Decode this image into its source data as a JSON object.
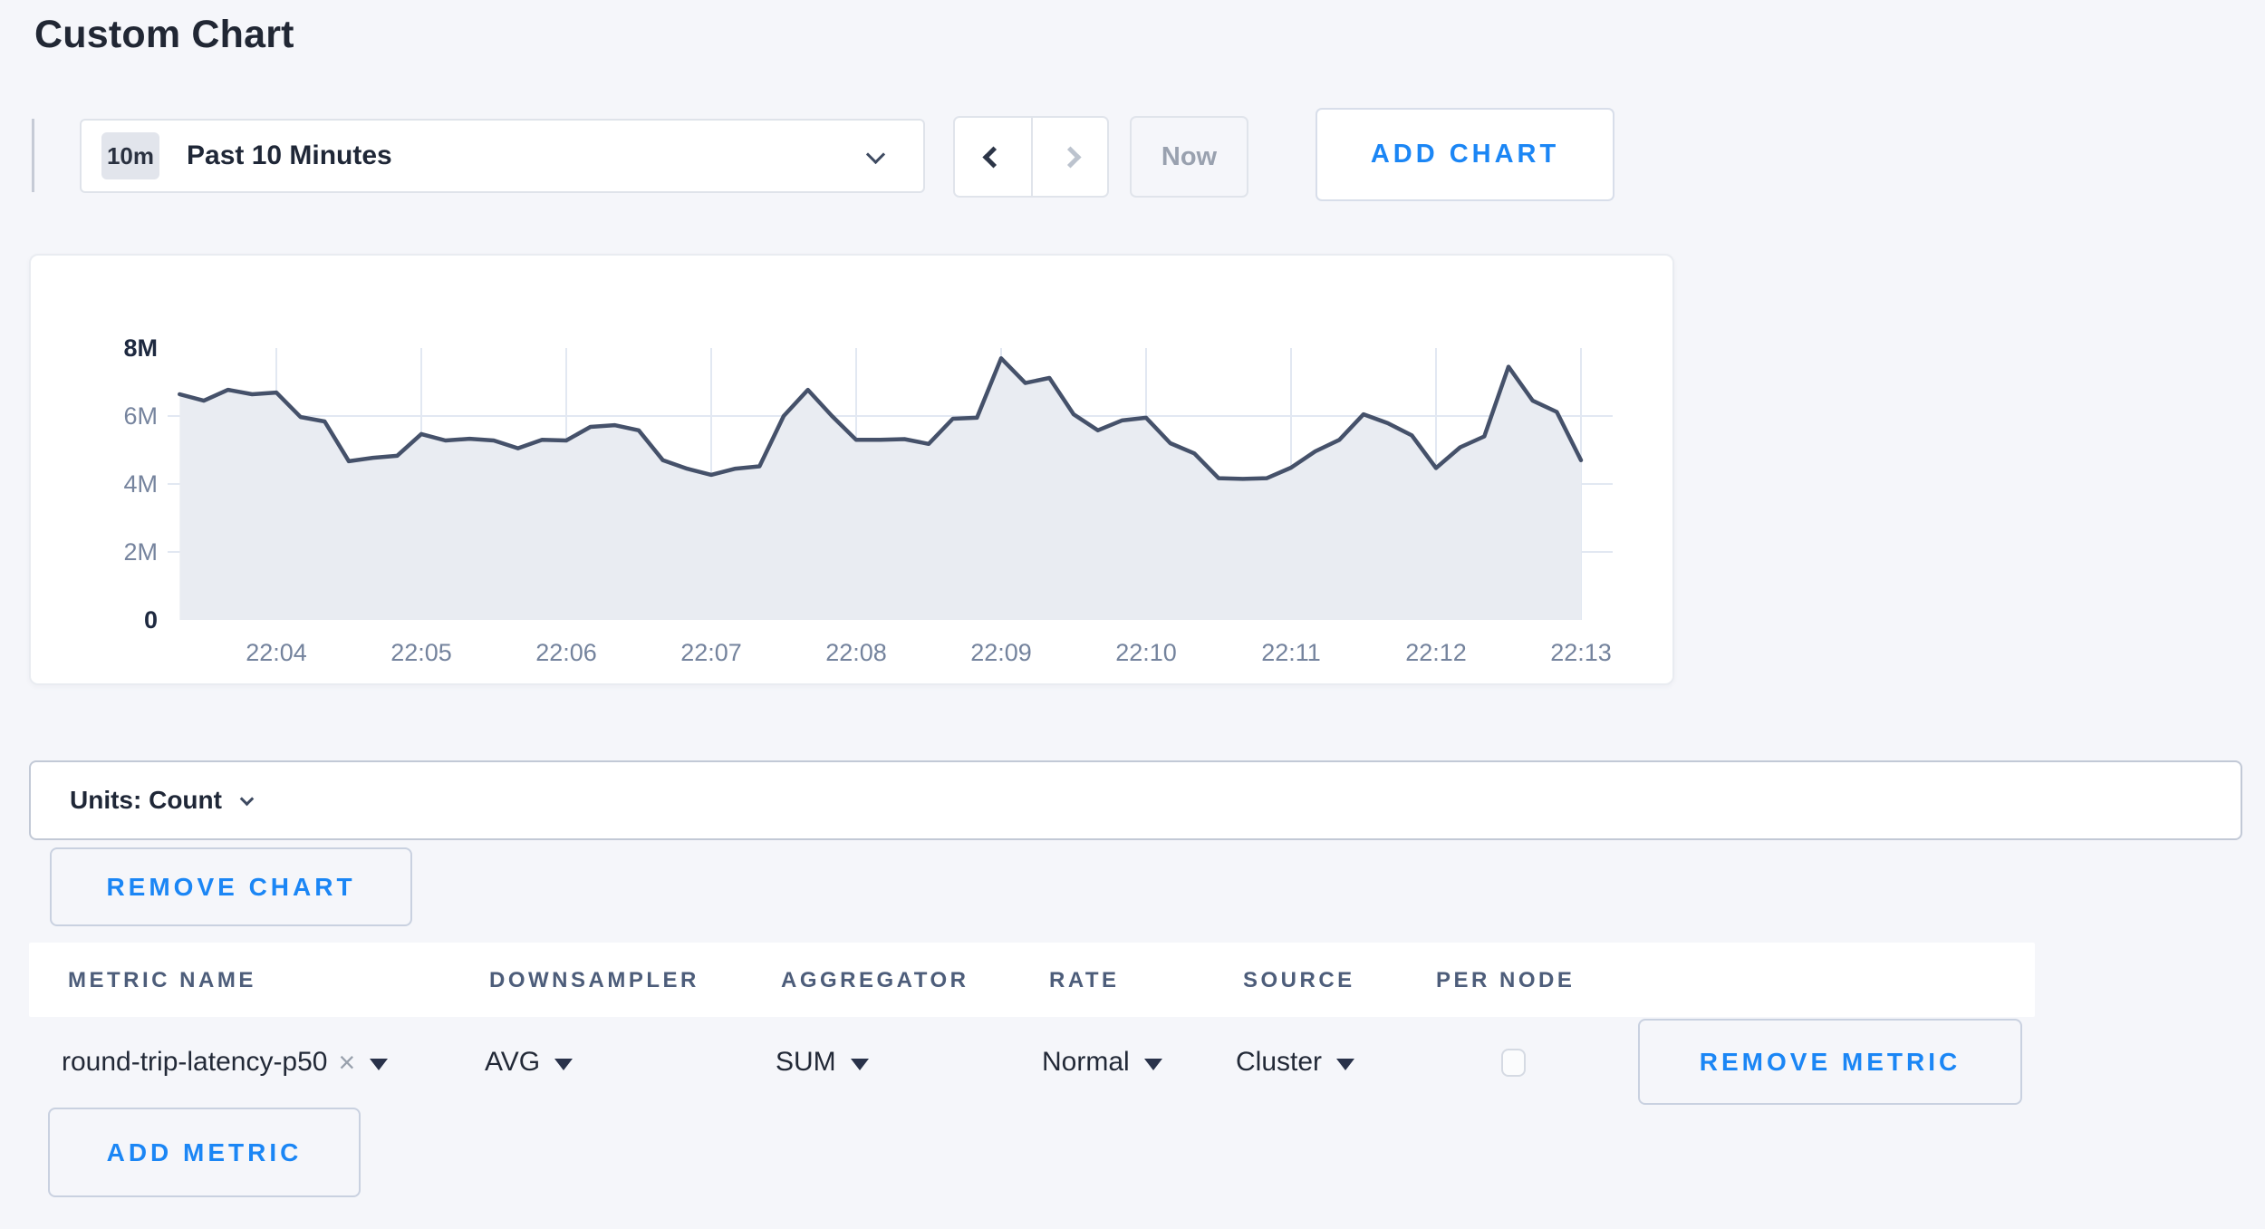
{
  "page": {
    "title": "Custom Chart"
  },
  "toolbar": {
    "time_range": {
      "badge": "10m",
      "label": "Past 10 Minutes"
    },
    "now_label": "Now",
    "add_chart_label": "ADD CHART"
  },
  "chart_data": {
    "type": "area",
    "title": "",
    "unit": "Count",
    "x_ticks": [
      "22:04",
      "22:05",
      "22:06",
      "22:07",
      "22:08",
      "22:09",
      "22:10",
      "22:11",
      "22:12",
      "22:13"
    ],
    "y_ticks": [
      {
        "value": 0,
        "label": "0"
      },
      {
        "value": 2000000,
        "label": "2M"
      },
      {
        "value": 4000000,
        "label": "4M"
      },
      {
        "value": 6000000,
        "label": "6M"
      },
      {
        "value": 8000000,
        "label": "8M"
      }
    ],
    "ylim": [
      0,
      8000000
    ],
    "grid": true,
    "legend_position": "none",
    "colors": {
      "line": "#45516a",
      "fill": "#e9ecf2",
      "gridline": "#e2e8f2"
    },
    "series": [
      {
        "name": "round-trip-latency-p50",
        "points": [
          [
            "22:03:20",
            6640000
          ],
          [
            "22:03:30",
            6450000
          ],
          [
            "22:03:40",
            6770000
          ],
          [
            "22:03:50",
            6640000
          ],
          [
            "22:04:00",
            6690000
          ],
          [
            "22:04:10",
            5970000
          ],
          [
            "22:04:20",
            5840000
          ],
          [
            "22:04:30",
            4670000
          ],
          [
            "22:04:40",
            4770000
          ],
          [
            "22:04:50",
            4830000
          ],
          [
            "22:05:00",
            5470000
          ],
          [
            "22:05:10",
            5280000
          ],
          [
            "22:05:20",
            5330000
          ],
          [
            "22:05:30",
            5280000
          ],
          [
            "22:05:40",
            5050000
          ],
          [
            "22:05:50",
            5300000
          ],
          [
            "22:06:00",
            5280000
          ],
          [
            "22:06:10",
            5680000
          ],
          [
            "22:06:20",
            5730000
          ],
          [
            "22:06:30",
            5580000
          ],
          [
            "22:06:40",
            4700000
          ],
          [
            "22:06:50",
            4450000
          ],
          [
            "22:07:00",
            4270000
          ],
          [
            "22:07:10",
            4450000
          ],
          [
            "22:07:20",
            4520000
          ],
          [
            "22:07:30",
            6000000
          ],
          [
            "22:07:40",
            6770000
          ],
          [
            "22:07:50",
            6000000
          ],
          [
            "22:08:00",
            5300000
          ],
          [
            "22:08:10",
            5300000
          ],
          [
            "22:08:20",
            5320000
          ],
          [
            "22:08:30",
            5180000
          ],
          [
            "22:08:40",
            5920000
          ],
          [
            "22:08:50",
            5950000
          ],
          [
            "22:09:00",
            7700000
          ],
          [
            "22:09:10",
            6970000
          ],
          [
            "22:09:20",
            7120000
          ],
          [
            "22:09:30",
            6050000
          ],
          [
            "22:09:40",
            5580000
          ],
          [
            "22:09:50",
            5870000
          ],
          [
            "22:10:00",
            5950000
          ],
          [
            "22:10:10",
            5200000
          ],
          [
            "22:10:20",
            4900000
          ],
          [
            "22:10:30",
            4170000
          ],
          [
            "22:10:40",
            4150000
          ],
          [
            "22:10:50",
            4170000
          ],
          [
            "22:11:00",
            4480000
          ],
          [
            "22:11:10",
            4960000
          ],
          [
            "22:11:20",
            5300000
          ],
          [
            "22:11:30",
            6050000
          ],
          [
            "22:11:40",
            5790000
          ],
          [
            "22:11:50",
            5430000
          ],
          [
            "22:12:00",
            4470000
          ],
          [
            "22:12:10",
            5080000
          ],
          [
            "22:12:20",
            5400000
          ],
          [
            "22:12:30",
            7450000
          ],
          [
            "22:12:40",
            6450000
          ],
          [
            "22:12:50",
            6120000
          ],
          [
            "22:13:00",
            4700000
          ]
        ]
      }
    ]
  },
  "units_bar": {
    "label": "Units: Count"
  },
  "chart_actions": {
    "remove_chart_label": "REMOVE CHART"
  },
  "metrics_table": {
    "headers": [
      "METRIC NAME",
      "DOWNSAMPLER",
      "AGGREGATOR",
      "RATE",
      "SOURCE",
      "PER NODE"
    ],
    "rows": [
      {
        "metric_name": "round-trip-latency-p50",
        "downsampler": "AVG",
        "aggregator": "SUM",
        "rate": "Normal",
        "source": "Cluster",
        "per_node_checked": false
      }
    ],
    "remove_metric_label": "REMOVE METRIC",
    "add_metric_label": "ADD METRIC"
  },
  "icons": {
    "clear": "×"
  }
}
